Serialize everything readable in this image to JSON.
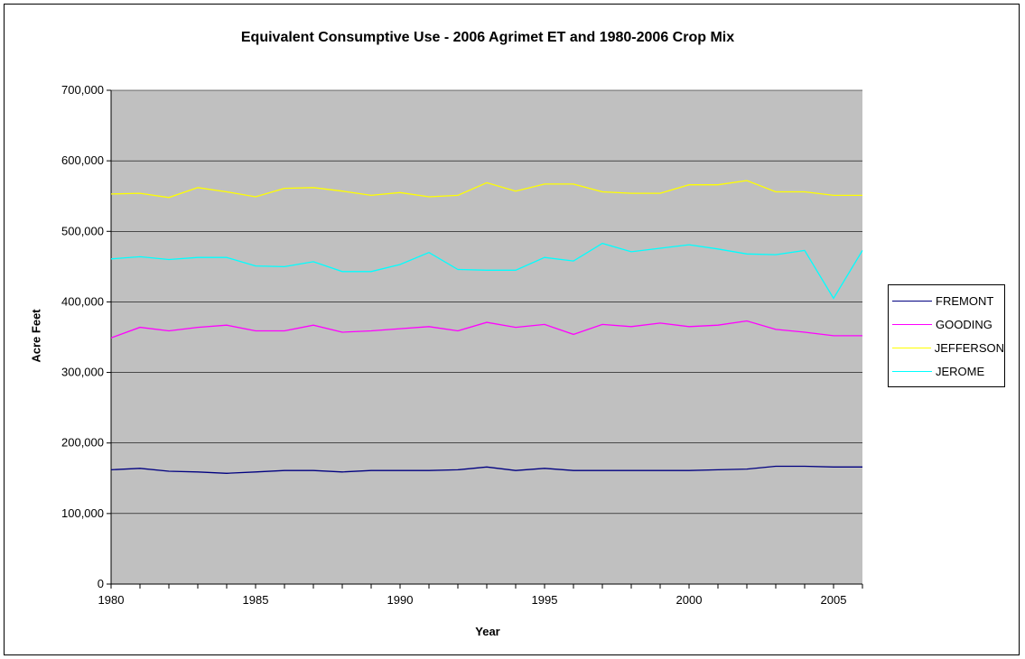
{
  "chart_data": {
    "type": "line",
    "title": "Equivalent Consumptive Use - 2006 Agrimet ET and 1980-2006 Crop Mix",
    "xlabel": "Year",
    "ylabel": "Acre Feet",
    "ylim": [
      0,
      700000
    ],
    "xlim": [
      1980,
      2006
    ],
    "y_ticks": [
      "0",
      "100,000",
      "200,000",
      "300,000",
      "400,000",
      "500,000",
      "600,000",
      "700,000"
    ],
    "x_ticks": [
      "1980",
      "1985",
      "1990",
      "1995",
      "2000",
      "2005"
    ],
    "grid": true,
    "legend_position": "right",
    "plot_background": "#c0c0c0",
    "x": [
      1980,
      1981,
      1982,
      1983,
      1984,
      1985,
      1986,
      1987,
      1988,
      1989,
      1990,
      1991,
      1992,
      1993,
      1994,
      1995,
      1996,
      1997,
      1998,
      1999,
      2000,
      2001,
      2002,
      2003,
      2004,
      2005,
      2006
    ],
    "series": [
      {
        "name": "FREMONT",
        "color": "#000080",
        "values": [
          162000,
          164000,
          160000,
          159000,
          157000,
          159000,
          161000,
          161000,
          159000,
          161000,
          161000,
          161000,
          162000,
          166000,
          161000,
          164000,
          161000,
          161000,
          161000,
          161000,
          161000,
          162000,
          163000,
          167000,
          167000,
          166000,
          166000
        ]
      },
      {
        "name": "GOODING",
        "color": "#ff00ff",
        "values": [
          349000,
          364000,
          359000,
          364000,
          367000,
          359000,
          359000,
          367000,
          357000,
          359000,
          362000,
          365000,
          359000,
          371000,
          364000,
          368000,
          354000,
          368000,
          365000,
          370000,
          365000,
          367000,
          373000,
          361000,
          357000,
          352000,
          352000
        ]
      },
      {
        "name": "JEFFERSON",
        "color": "#ffff00",
        "values": [
          553000,
          554000,
          548000,
          562000,
          556000,
          549000,
          561000,
          562000,
          557000,
          551000,
          555000,
          549000,
          551000,
          569000,
          557000,
          567000,
          567000,
          556000,
          554000,
          554000,
          566000,
          566000,
          572000,
          556000,
          556000,
          551000,
          551000
        ]
      },
      {
        "name": "JEROME",
        "color": "#00ffff",
        "values": [
          461000,
          464000,
          460000,
          463000,
          463000,
          451000,
          450000,
          457000,
          443000,
          443000,
          453000,
          470000,
          446000,
          445000,
          445000,
          463000,
          458000,
          483000,
          471000,
          476000,
          481000,
          475000,
          468000,
          467000,
          473000,
          405000,
          473000
        ]
      }
    ]
  }
}
